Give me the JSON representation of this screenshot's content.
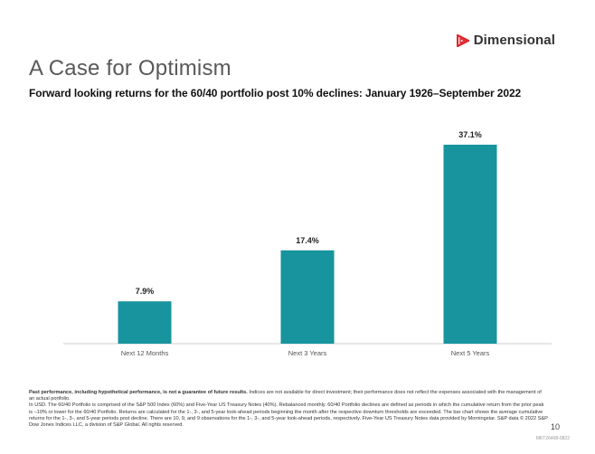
{
  "brand": {
    "name": "Dimensional",
    "accent_color": "#E0252A"
  },
  "slide": {
    "title": "A Case for Optimism",
    "subtitle": "Forward looking returns for the 60/40 portfolio post 10% declines: January 1926–September 2022",
    "page_number": "10",
    "job_code": "MKT26408-0822"
  },
  "footnote": {
    "bold": "Past performance, including hypothetical performance, is not a guarantee of future results.",
    "p1": "Indices are not available for direct investment; their performance does not reflect the expenses associated with the management of an actual portfolio.",
    "p2": "In USD. The 60/40 Portfolio is comprised of the S&P 500 Index (60%) and Five-Year US Treasury Notes (40%). Rebalanced monthly. 60/40 Portfolio declines are defined as periods in which the cumulative return from the prior peak is –10% or lower for the 60/40 Portfolio. Returns are calculated for the 1-, 3-, and 5-year look-ahead periods beginning the month after the respective downturn thresholds are exceeded. The bar chart shows the average cumulative returns for the 1-, 3-, and 5-year periods post decline. There are 10, 9, and 9 observations for the 1-, 3-, and 5-year look-ahead periods, respectively. Five-Year US Treasury Notes data provided by Morningstar. S&P data © 2022 S&P Dow Jones Indices LLC, a division of S&P Global. All rights reserved."
  },
  "chart_data": {
    "type": "bar",
    "categories": [
      "Next 12 Months",
      "Next 3 Years",
      "Next 5 Years"
    ],
    "values": [
      7.9,
      17.4,
      37.1
    ],
    "labels": [
      "7.9%",
      "17.4%",
      "37.1%"
    ],
    "title": "",
    "xlabel": "",
    "ylabel": "",
    "ylim": [
      0,
      37.1
    ],
    "grid": false,
    "legend": "none",
    "bar_color": "#17949E"
  }
}
